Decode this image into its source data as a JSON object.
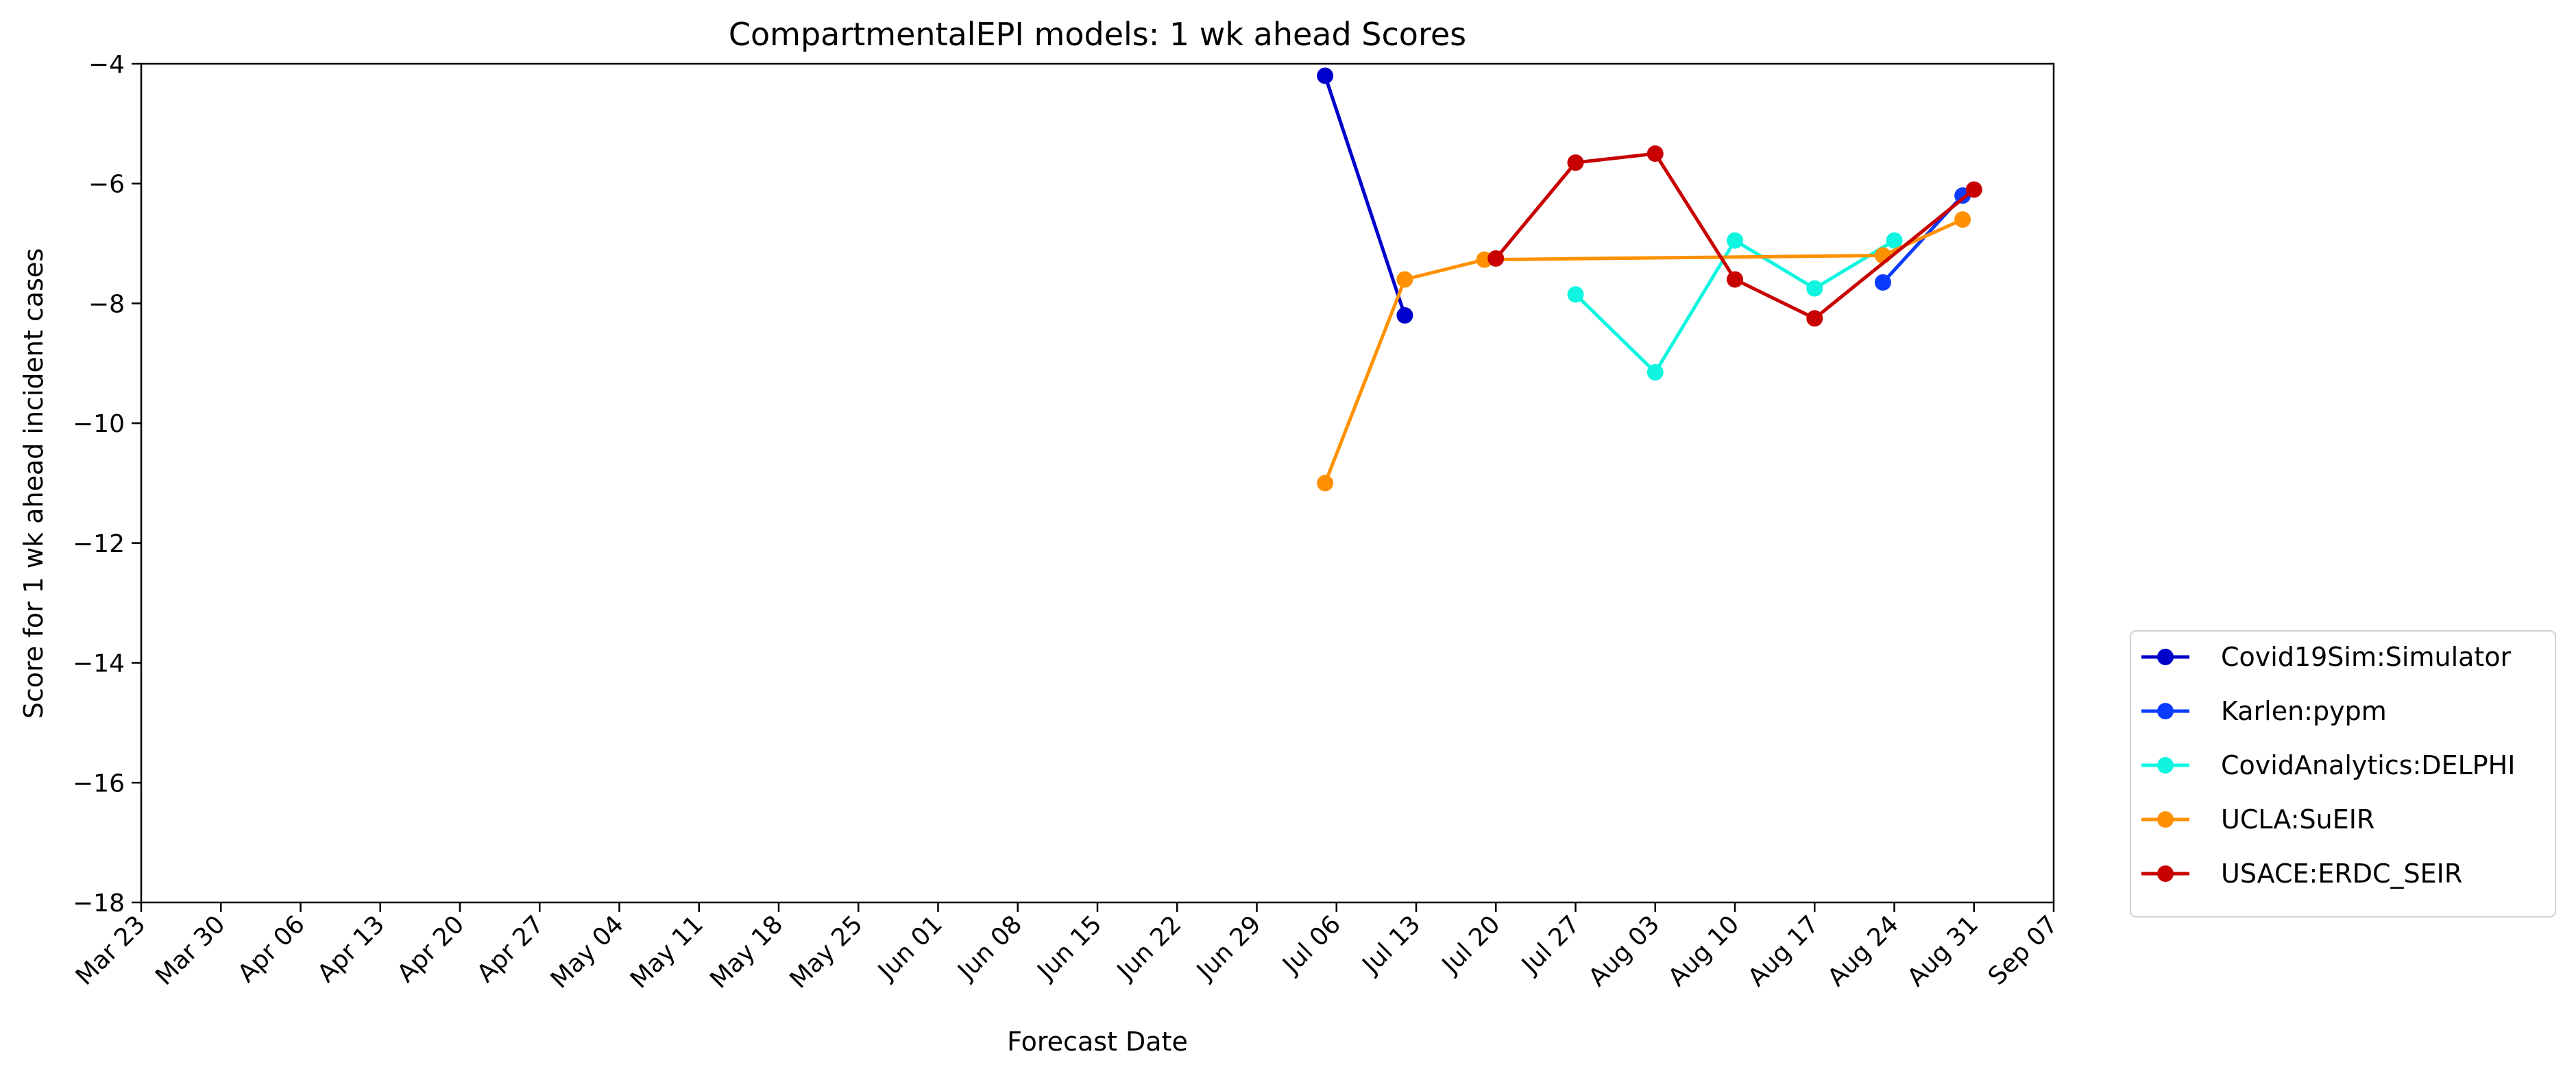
{
  "chart_data": {
    "type": "line",
    "title": "CompartmentalEPI models: 1 wk ahead Scores",
    "xlabel": "Forecast Date",
    "ylabel": "Score for 1 wk ahead incident cases",
    "ylim": [
      -18,
      -4
    ],
    "yticks": [
      -4,
      -6,
      -8,
      -10,
      -12,
      -14,
      -16,
      -18
    ],
    "ytick_labels": [
      "−4",
      "−6",
      "−8",
      "−10",
      "−12",
      "−14",
      "−16",
      "−18"
    ],
    "xlim": [
      "2020-03-23",
      "2020-09-07"
    ],
    "xticks": [
      "2020-03-23",
      "2020-03-30",
      "2020-04-06",
      "2020-04-13",
      "2020-04-20",
      "2020-04-27",
      "2020-05-04",
      "2020-05-11",
      "2020-05-18",
      "2020-05-25",
      "2020-06-01",
      "2020-06-08",
      "2020-06-15",
      "2020-06-22",
      "2020-06-29",
      "2020-07-06",
      "2020-07-13",
      "2020-07-20",
      "2020-07-27",
      "2020-08-03",
      "2020-08-10",
      "2020-08-17",
      "2020-08-24",
      "2020-08-31",
      "2020-09-07"
    ],
    "xtick_labels": [
      "Mar 23",
      "Mar 30",
      "Apr 06",
      "Apr 13",
      "Apr 20",
      "Apr 27",
      "May 04",
      "May 11",
      "May 18",
      "May 25",
      "Jun 01",
      "Jun 08",
      "Jun 15",
      "Jun 22",
      "Jun 29",
      "Jul 06",
      "Jul 13",
      "Jul 20",
      "Jul 27",
      "Aug 03",
      "Aug 10",
      "Aug 17",
      "Aug 24",
      "Aug 31",
      "Sep 07"
    ],
    "grid": false,
    "legend_position": "lower-right-outside",
    "series": [
      {
        "name": "Covid19Sim:Simulator",
        "color": "#0000cc",
        "x": [
          "2020-07-05",
          "2020-07-12"
        ],
        "y": [
          -4.2,
          -8.2
        ]
      },
      {
        "name": "Karlen:pypm",
        "color": "#0a3cff",
        "x": [
          "2020-08-23",
          "2020-08-30"
        ],
        "y": [
          -7.65,
          -6.2
        ]
      },
      {
        "name": "CovidAnalytics:DELPHI",
        "color": "#10f5e0",
        "x": [
          "2020-07-27",
          "2020-08-03",
          "2020-08-10",
          "2020-08-17",
          "2020-08-24"
        ],
        "y": [
          -7.85,
          -9.15,
          -6.95,
          -7.75,
          -6.95
        ]
      },
      {
        "name": "UCLA:SuEIR",
        "color": "#ff9100",
        "x": [
          "2020-07-05",
          "2020-07-12",
          "2020-07-19",
          "2020-08-23",
          "2020-08-30"
        ],
        "y": [
          -11.0,
          -7.6,
          -7.27,
          -7.2,
          -6.6
        ]
      },
      {
        "name": "USACE:ERDC_SEIR",
        "color": "#c80000",
        "x": [
          "2020-07-20",
          "2020-07-27",
          "2020-08-03",
          "2020-08-10",
          "2020-08-17",
          "2020-08-31"
        ],
        "y": [
          -7.25,
          -5.65,
          -5.5,
          -7.6,
          -8.25,
          -6.1
        ]
      }
    ]
  }
}
